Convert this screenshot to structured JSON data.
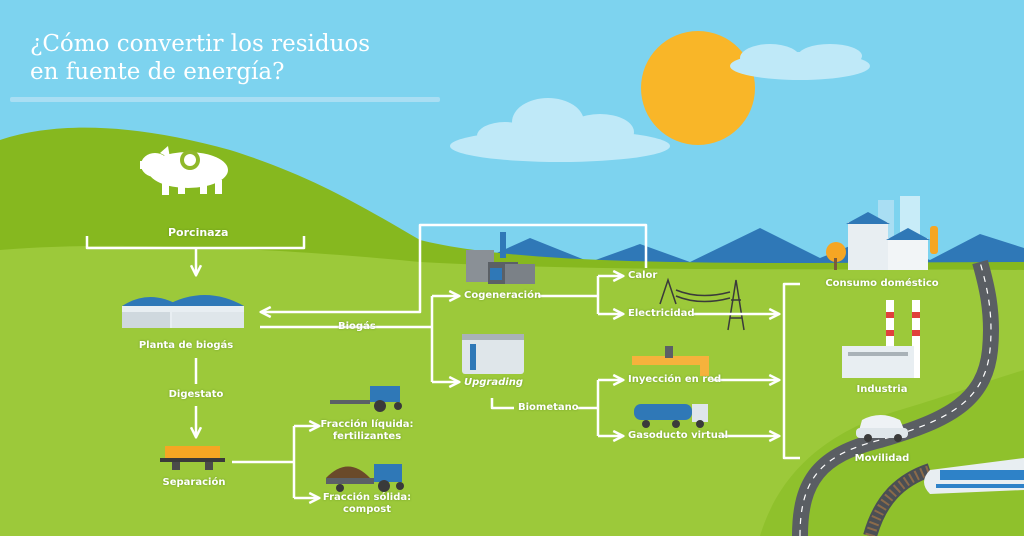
{
  "title": {
    "line1": "¿Cómo convertir los residuos",
    "line2": "en fuente de energía?"
  },
  "colors": {
    "sky": "#7dd3ef",
    "hill_dark": "#86b81f",
    "hill_light": "#9cc93a",
    "sun": "#f9b628",
    "mountain": "#2f78b7",
    "road": "#5a5e63",
    "arrow": "#ffffff"
  },
  "nodes": {
    "porcinaza": "Porcinaza",
    "planta_biogas": "Planta de biogás",
    "biogas": "Biogás",
    "digestato": "Digestato",
    "separacion": "Separación",
    "fraccion_liquida_1": "Fracción líquida:",
    "fraccion_liquida_2": "fertilizantes",
    "fraccion_solida_1": "Fracción sólida:",
    "fraccion_solida_2": "compost",
    "cogeneracion": "Cogeneración",
    "upgrading": "Upgrading",
    "biometano": "Biometano",
    "calor": "Calor",
    "electricidad": "Electricidad",
    "inyeccion_red": "Inyección en red",
    "gasoducto_virtual": "Gasoducto virtual",
    "consumo_domestico": "Consumo doméstico",
    "industria": "Industria",
    "movilidad": "Movilidad"
  },
  "icons": [
    "pig-icon",
    "biogas-plant-icon",
    "separator-icon",
    "tractor-icon",
    "cogeneration-plant-icon",
    "upgrading-tank-icon",
    "power-tower-icon",
    "gas-pipe-icon",
    "tanker-truck-icon",
    "city-icon",
    "factory-icon",
    "car-icon",
    "train-icon",
    "sun-icon"
  ]
}
